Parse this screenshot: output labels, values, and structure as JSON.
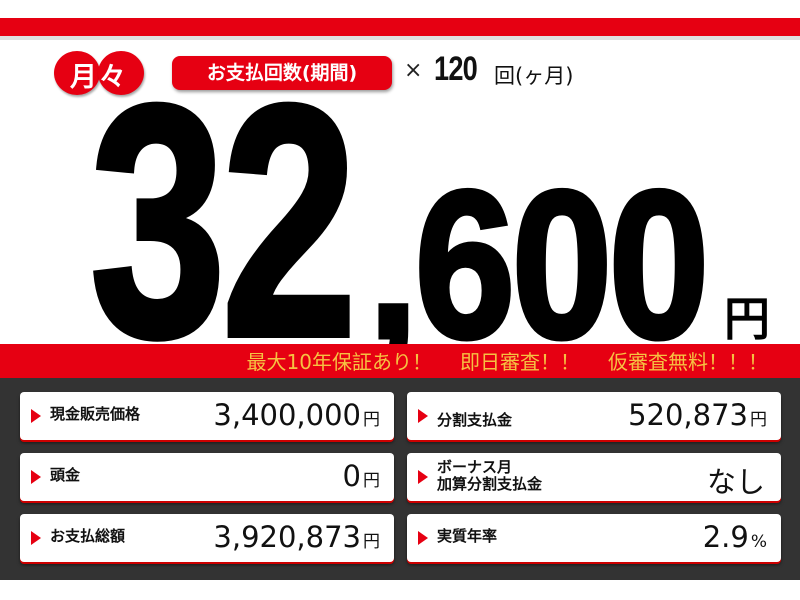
{
  "header": {
    "monthly_badge": "月々",
    "period_label": "お支払回数(期間)",
    "times": "×",
    "count": "120",
    "count_unit": "回(ヶ月)"
  },
  "price": {
    "main": "32",
    "rest": ",600",
    "unit": "円"
  },
  "slogans": [
    "最大10年保証あり！",
    "即日審査！！",
    "仮審査無料！！！"
  ],
  "details": [
    {
      "label": "現金販売価格",
      "value": "3,400,000",
      "unit": "円"
    },
    {
      "label": "分割支払金",
      "value": "520,873",
      "unit": "円"
    },
    {
      "label": "頭金",
      "value": "0",
      "unit": "円"
    },
    {
      "label": "ボーナス月\n加算分割支払金",
      "value": "なし",
      "unit": ""
    },
    {
      "label": "お支払総額",
      "value": "3,920,873",
      "unit": "円"
    },
    {
      "label": "実質年率",
      "value": "2.9",
      "unit": "%"
    }
  ],
  "colors": {
    "brand_red": "#e60012",
    "slogan": "#f6c142",
    "panel": "#333333"
  }
}
